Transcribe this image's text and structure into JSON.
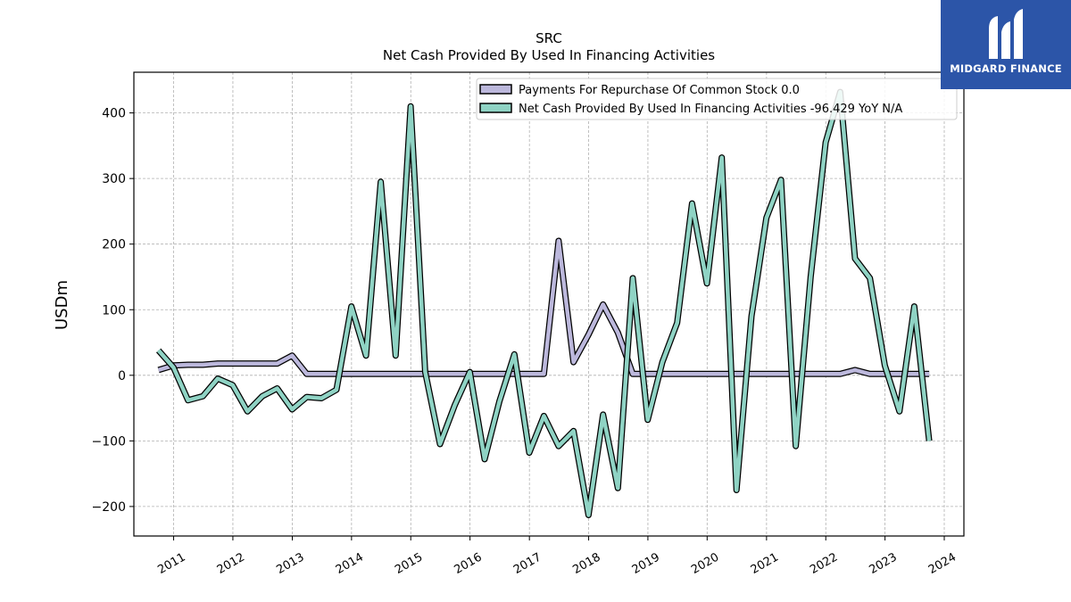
{
  "brand": {
    "name": "MIDGARD FINANCE",
    "color": "#2c55a8"
  },
  "chart_data": {
    "type": "line",
    "title": "SRC",
    "subtitle": "Net Cash Provided By Used In Financing Activities",
    "xlabel": "",
    "ylabel": "USDm",
    "xlim": [
      "2010-05-01",
      "2024-05-01"
    ],
    "ylim": [
      -245,
      462
    ],
    "x_ticks": [
      "2011",
      "2012",
      "2013",
      "2014",
      "2015",
      "2016",
      "2017",
      "2018",
      "2019",
      "2020",
      "2021",
      "2022",
      "2023",
      "2024"
    ],
    "y_ticks": [
      -200,
      -100,
      0,
      100,
      200,
      300,
      400
    ],
    "y_tick_labels": [
      "−200",
      "−100",
      "0",
      "100",
      "200",
      "300",
      "400"
    ],
    "grid": true,
    "legend_position": "top-right",
    "series": [
      {
        "name": "Payments For Repurchase Of Common Stock",
        "legend_value": "0.0",
        "color": "#bcb8dc",
        "x": [
          "2010-09-30",
          "2010-12-31",
          "2011-03-31",
          "2011-06-30",
          "2011-09-30",
          "2011-12-31",
          "2012-03-31",
          "2012-06-30",
          "2012-09-30",
          "2012-12-31",
          "2013-03-31",
          "2013-06-30",
          "2013-09-30",
          "2013-12-31",
          "2014-03-31",
          "2014-06-30",
          "2014-09-30",
          "2014-12-31",
          "2015-03-31",
          "2015-06-30",
          "2015-09-30",
          "2015-12-31",
          "2016-03-31",
          "2016-06-30",
          "2016-09-30",
          "2016-12-31",
          "2017-03-31",
          "2017-06-30",
          "2017-09-30",
          "2017-12-31",
          "2018-03-31",
          "2018-06-30",
          "2018-09-30",
          "2018-12-31",
          "2019-03-31",
          "2019-06-30",
          "2019-09-30",
          "2019-12-31",
          "2020-03-31",
          "2020-06-30",
          "2020-09-30",
          "2020-12-31",
          "2021-03-31",
          "2021-06-30",
          "2021-09-30",
          "2021-12-31",
          "2022-03-31",
          "2022-06-30",
          "2022-09-30",
          "2022-12-31",
          "2023-03-31",
          "2023-06-30",
          "2023-09-30"
        ],
        "y": [
          8,
          15,
          16,
          16,
          18,
          18,
          18,
          18,
          18,
          30,
          2,
          2,
          2,
          2,
          2,
          2,
          2,
          2,
          2,
          2,
          2,
          2,
          2,
          2,
          2,
          2,
          2,
          205,
          20,
          62,
          108,
          65,
          2,
          2,
          2,
          2,
          2,
          2,
          2,
          2,
          2,
          2,
          2,
          2,
          2,
          2,
          2,
          8,
          2,
          2,
          2,
          2,
          2
        ]
      },
      {
        "name": "Net Cash Provided By Used In Financing Activities",
        "legend_value": "-96.429 YoY N/A",
        "color": "#8fd3c4",
        "x": [
          "2010-09-30",
          "2010-12-31",
          "2011-03-31",
          "2011-06-30",
          "2011-09-30",
          "2011-12-31",
          "2012-03-31",
          "2012-06-30",
          "2012-09-30",
          "2012-12-31",
          "2013-03-31",
          "2013-06-30",
          "2013-09-30",
          "2013-12-31",
          "2014-03-31",
          "2014-06-30",
          "2014-09-30",
          "2014-12-31",
          "2015-03-31",
          "2015-06-30",
          "2015-09-30",
          "2015-12-31",
          "2016-03-31",
          "2016-06-30",
          "2016-09-30",
          "2016-12-31",
          "2017-03-31",
          "2017-06-30",
          "2017-09-30",
          "2017-12-31",
          "2018-03-31",
          "2018-06-30",
          "2018-09-30",
          "2018-12-31",
          "2019-03-31",
          "2019-06-30",
          "2019-09-30",
          "2019-12-31",
          "2020-03-31",
          "2020-06-30",
          "2020-09-30",
          "2020-12-31",
          "2021-03-31",
          "2021-06-30",
          "2021-09-30",
          "2021-12-31",
          "2022-03-31",
          "2022-06-30",
          "2022-09-30",
          "2022-12-31",
          "2023-03-31",
          "2023-06-30",
          "2023-09-30"
        ],
        "y": [
          38,
          12,
          -38,
          -32,
          -5,
          -15,
          -55,
          -32,
          -20,
          -52,
          -33,
          -35,
          -22,
          105,
          30,
          295,
          30,
          410,
          5,
          -105,
          -45,
          5,
          -128,
          -40,
          32,
          -118,
          -62,
          -108,
          -85,
          -213,
          -60,
          -172,
          148,
          -68,
          20,
          80,
          262,
          140,
          332,
          -175,
          90,
          240,
          298,
          -108,
          150,
          355,
          432,
          178,
          148,
          15,
          -55,
          105,
          -100
        ]
      }
    ]
  }
}
